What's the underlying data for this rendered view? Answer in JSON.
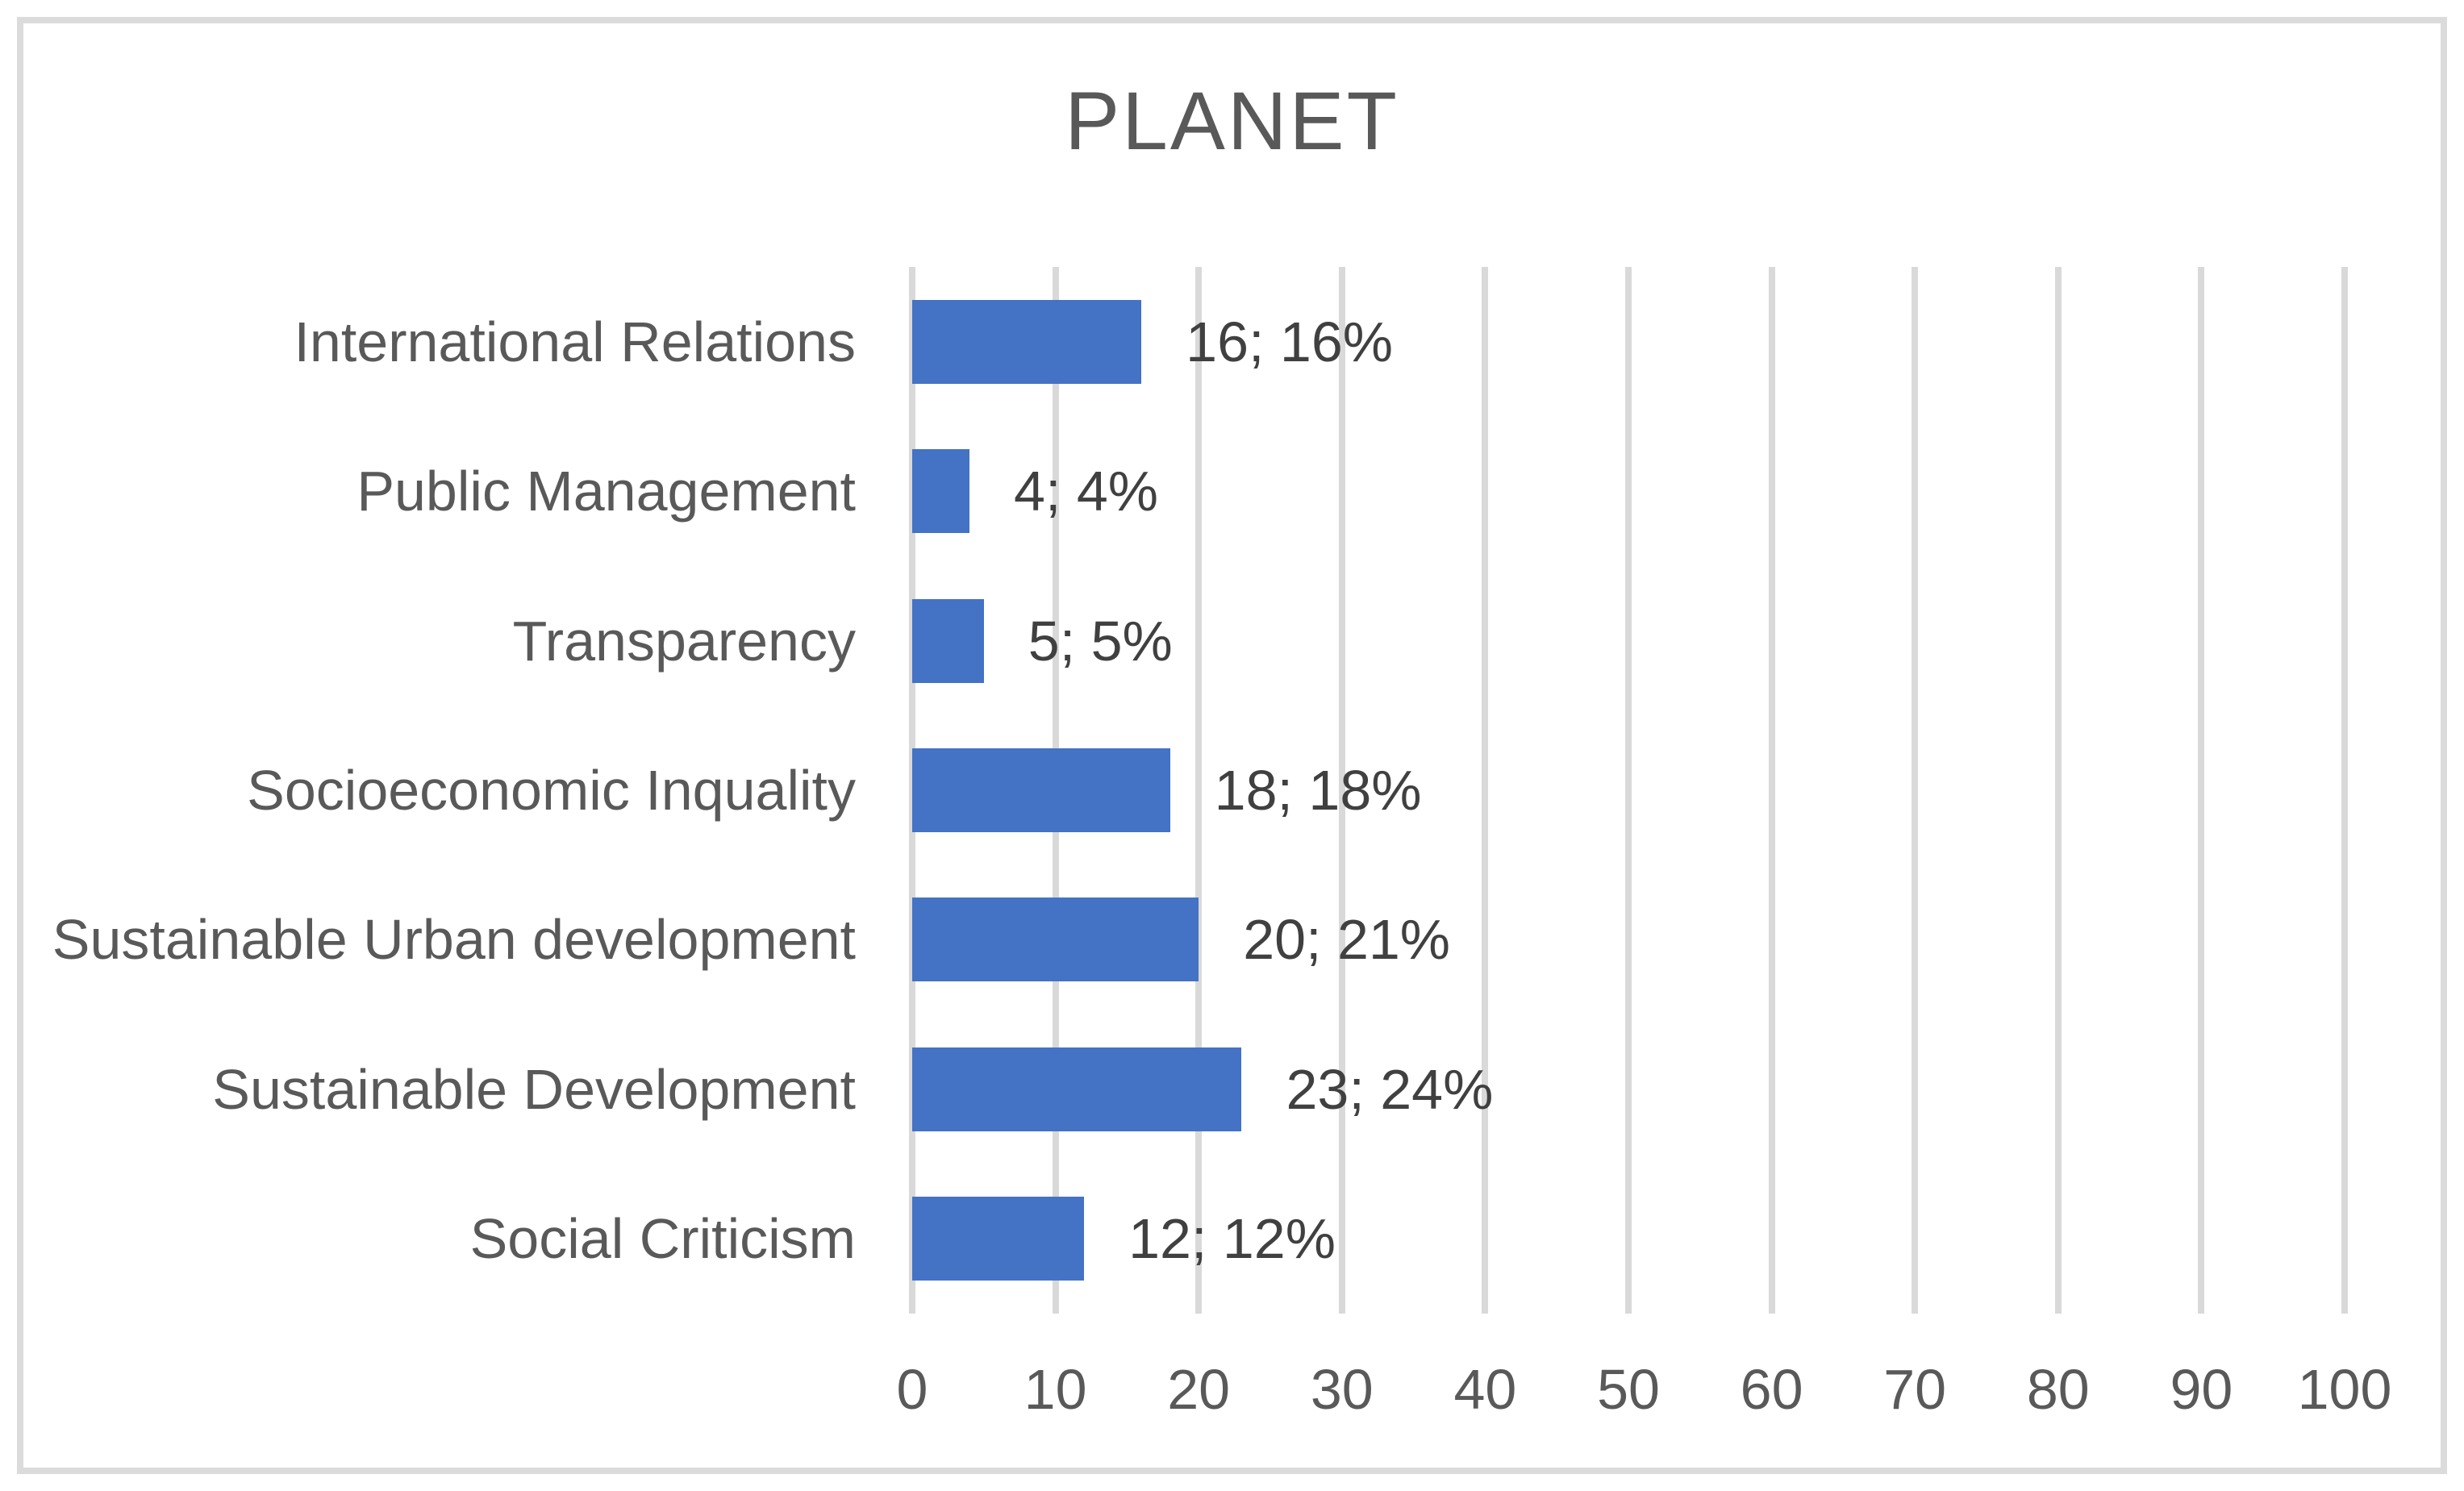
{
  "chart_data": {
    "type": "bar",
    "orientation": "horizontal",
    "title": "PLANET",
    "categories": [
      "International Relations",
      "Public Management",
      "Transparency",
      "Socioeconomic Inquality",
      "Sustainable Urban development",
      "Sustainable Development",
      "Social Criticism"
    ],
    "values": [
      16,
      4,
      5,
      18,
      20,
      23,
      12
    ],
    "value_labels": [
      "16; 16%",
      "4; 4%",
      "5; 5%",
      "18; 18%",
      "20; 21%",
      "23; 24%",
      "12; 12%"
    ],
    "xlabel": "",
    "ylabel": "",
    "xlim": [
      0,
      100
    ],
    "xticks": [
      0,
      10,
      20,
      30,
      40,
      50,
      60,
      70,
      80,
      90,
      100
    ],
    "grid": "vertical-only",
    "legend_position": "none",
    "colors": {
      "bar": "#4472C4",
      "gridline": "#D9D9D9",
      "axis_text": "#595959",
      "category_text": "#595959",
      "value_text": "#404040",
      "title_text": "#595959",
      "border": "#DBDBDB",
      "background": "#FFFFFF"
    }
  }
}
